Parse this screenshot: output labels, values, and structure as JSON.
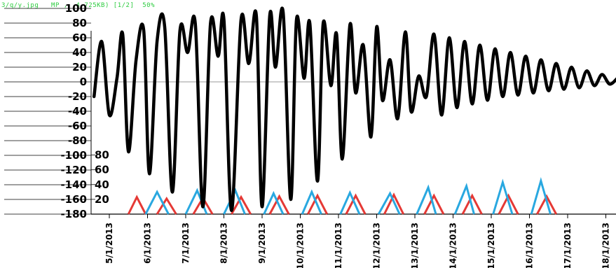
{
  "viewer": {
    "status_text": "3/q/y.jpg   MP ,  4 725KB) [1/2]  50%"
  },
  "chart_data": [
    {
      "type": "line",
      "title": "",
      "xlabel": "",
      "ylabel": "",
      "ylim": [
        -180,
        100
      ],
      "y_ticks": [
        "100",
        "80",
        "60",
        "40",
        "20",
        "0",
        "-20",
        "-40",
        "-60",
        "-80",
        "-100",
        "-120",
        "-140",
        "-160",
        "-180"
      ],
      "x_ticks": [
        "5/1/2013",
        "6/1/2013",
        "7/1/2013",
        "8/1/2013",
        "9/1/2013",
        "10/1/2013",
        "11/1/2013",
        "12/1/2013",
        "13/1/2013",
        "14/1/2013",
        "15/1/2013",
        "16/1/2013",
        "17/1/2013",
        "18/1/2013"
      ],
      "x_unit": "day (January 2013)",
      "zero_line": true,
      "series": [
        {
          "color": "#000000",
          "x": [
            4.6,
            4.8,
            5.0,
            5.2,
            5.35,
            5.5,
            5.7,
            5.9,
            6.05,
            6.25,
            6.45,
            6.65,
            6.85,
            7.05,
            7.25,
            7.45,
            7.65,
            7.85,
            8.0,
            8.2,
            8.45,
            8.65,
            8.85,
            9.0,
            9.2,
            9.35,
            9.55,
            9.75,
            9.9,
            10.1,
            10.25,
            10.45,
            10.6,
            10.8,
            10.95,
            11.1,
            11.3,
            11.45,
            11.65,
            11.85,
            12.0,
            12.15,
            12.35,
            12.55,
            12.75,
            12.9,
            13.1,
            13.3,
            13.5,
            13.7,
            13.9,
            14.1,
            14.3,
            14.5,
            14.7,
            14.9,
            15.1,
            15.3,
            15.5,
            15.7,
            15.9,
            16.1,
            16.3,
            16.5,
            16.7,
            16.9,
            17.1,
            17.3,
            17.5,
            17.7,
            17.9,
            18.1,
            18.3
          ],
          "y": [
            -20,
            55,
            -45,
            5,
            65,
            -95,
            30,
            70,
            -125,
            55,
            75,
            -150,
            70,
            40,
            80,
            -170,
            80,
            35,
            85,
            -175,
            85,
            25,
            90,
            -170,
            90,
            20,
            95,
            -160,
            85,
            5,
            80,
            -135,
            80,
            -5,
            65,
            -105,
            78,
            -15,
            50,
            -75,
            75,
            -25,
            30,
            -50,
            68,
            -40,
            8,
            -20,
            65,
            -45,
            60,
            -35,
            55,
            -30,
            50,
            -25,
            45,
            -20,
            40,
            -18,
            35,
            -15,
            30,
            -12,
            25,
            -10,
            20,
            -8,
            15,
            -5,
            10,
            -3,
            5
          ]
        }
      ]
    },
    {
      "type": "line",
      "title": "",
      "xlabel": "",
      "ylabel": "",
      "ylim": [
        0,
        90
      ],
      "y_ticks": [
        "80",
        "60",
        "40",
        "20"
      ],
      "series": [
        {
          "color": "#e53935",
          "x": [
            5.5,
            5.72,
            5.95,
            6.25,
            6.5,
            6.75,
            7.2,
            7.45,
            7.7,
            8.2,
            8.45,
            8.7,
            9.2,
            9.45,
            9.7,
            10.2,
            10.45,
            10.7,
            11.2,
            11.45,
            11.7,
            12.2,
            12.45,
            12.7,
            13.25,
            13.5,
            13.75,
            14.25,
            14.5,
            14.75,
            15.2,
            15.45,
            15.7,
            16.2,
            16.45,
            16.7
          ],
          "y": [
            0,
            23,
            0,
            0,
            21,
            0,
            0,
            22,
            0,
            0,
            23,
            0,
            0,
            24,
            0,
            0,
            25,
            0,
            0,
            25,
            0,
            0,
            26,
            0,
            0,
            25,
            0,
            0,
            25,
            0,
            0,
            25,
            0,
            0,
            24,
            0
          ]
        },
        {
          "color": "#29a8e0",
          "x": [
            5.95,
            6.25,
            6.55,
            7.0,
            7.3,
            7.55,
            8.0,
            8.3,
            8.55,
            9.05,
            9.3,
            9.55,
            10.05,
            10.3,
            10.55,
            11.05,
            11.3,
            11.55,
            12.05,
            12.35,
            12.6,
            13.05,
            13.35,
            13.55,
            14.05,
            14.35,
            14.55,
            15.05,
            15.3,
            15.55,
            16.05,
            16.3,
            16.55
          ],
          "y": [
            0,
            30,
            0,
            0,
            32,
            0,
            0,
            32,
            0,
            0,
            28,
            0,
            0,
            30,
            0,
            0,
            29,
            0,
            0,
            28,
            0,
            0,
            36,
            0,
            0,
            38,
            0,
            0,
            43,
            0,
            0,
            45,
            0
          ]
        }
      ]
    }
  ]
}
